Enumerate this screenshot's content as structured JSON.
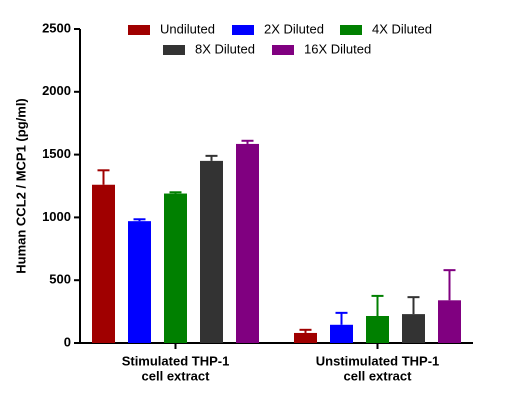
{
  "chart_data": {
    "type": "bar",
    "y_label": "Human CCL2 / MCP1 (pg/ml)",
    "categories": [
      [
        "Stimulated THP-1",
        "cell extract"
      ],
      [
        "Unstimulated THP-1",
        "cell extract"
      ]
    ],
    "series": [
      {
        "name": "Undiluted",
        "color": "#a00000",
        "values": [
          1260,
          80
        ],
        "errors": [
          115,
          25
        ]
      },
      {
        "name": "2X Diluted",
        "color": "#0000ff",
        "values": [
          970,
          145
        ],
        "errors": [
          15,
          95
        ]
      },
      {
        "name": "4X Diluted",
        "color": "#008000",
        "values": [
          1190,
          215
        ],
        "errors": [
          10,
          160
        ]
      },
      {
        "name": "8X Diluted",
        "color": "#333333",
        "values": [
          1450,
          230
        ],
        "errors": [
          40,
          135
        ]
      },
      {
        "name": "16X Diluted",
        "color": "#800080",
        "values": [
          1585,
          340
        ],
        "errors": [
          25,
          240
        ]
      }
    ],
    "ylim": [
      0,
      2500
    ],
    "yticks": [
      0,
      500,
      1000,
      1500,
      2000,
      2500
    ]
  }
}
